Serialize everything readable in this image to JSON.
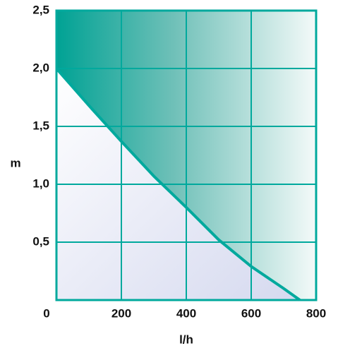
{
  "chart_data": {
    "type": "area",
    "x_label": "l/h",
    "y_label": "m",
    "x": [
      0,
      100,
      200,
      300,
      400,
      500,
      600,
      700,
      750
    ],
    "series": [
      {
        "color": "#00a99d",
        "values": [
          2.0,
          1.68,
          1.37,
          1.07,
          0.8,
          0.52,
          0.29,
          0.1,
          0
        ]
      }
    ],
    "xlim": [
      0,
      800
    ],
    "xticks": [
      0,
      200,
      400,
      600,
      800
    ],
    "ylim": [
      0,
      2.5
    ],
    "yticks": [
      {
        "value": 0.5,
        "label": "0,5"
      },
      {
        "value": 1.0,
        "label": "1,0"
      },
      {
        "value": 1.5,
        "label": "1,5"
      },
      {
        "value": 2.0,
        "label": "2,0"
      },
      {
        "value": 2.5,
        "label": "2,5"
      }
    ],
    "grid": true
  }
}
